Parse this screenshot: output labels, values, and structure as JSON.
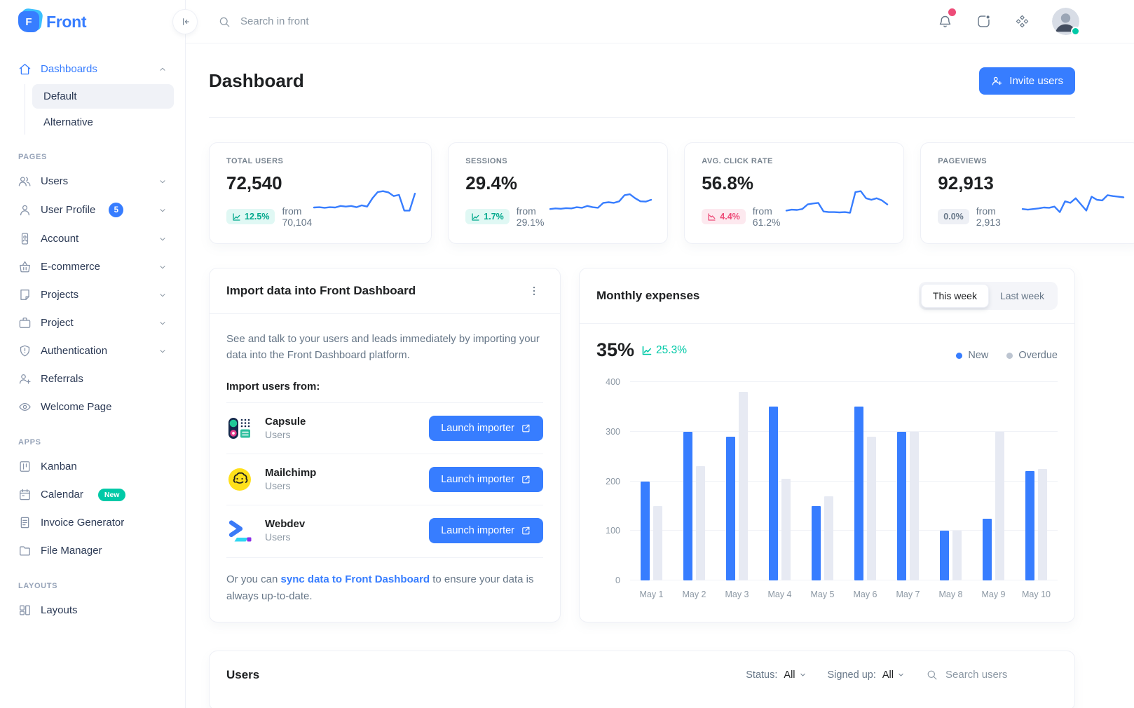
{
  "brand": {
    "name": "Front"
  },
  "header": {
    "search_placeholder": "Search in front",
    "icons": [
      "bell-icon",
      "activity-stream-icon",
      "apps-icon",
      "avatar"
    ]
  },
  "page": {
    "title": "Dashboard",
    "invite_button": "Invite users"
  },
  "colors": {
    "primary": "#377dff",
    "success": "#00c9a7",
    "danger": "#ed4c78",
    "bar_new": "#377dff",
    "bar_overdue": "#e7eaf3",
    "legend_overdue_dot": "#bdc5d1"
  },
  "sidebar": {
    "sections": [
      {
        "heading": null,
        "items": [
          {
            "label": "Dashboards",
            "icon": "home",
            "active": true,
            "expandable": true,
            "expanded": true,
            "children": [
              {
                "label": "Default",
                "active": true
              },
              {
                "label": "Alternative",
                "active": false
              }
            ]
          }
        ]
      },
      {
        "heading": "Pages",
        "items": [
          {
            "label": "Users",
            "icon": "users",
            "expandable": true
          },
          {
            "label": "User Profile",
            "icon": "user",
            "badge": "5",
            "expandable": true
          },
          {
            "label": "Account",
            "icon": "account",
            "expandable": true
          },
          {
            "label": "E-commerce",
            "icon": "basket",
            "expandable": true
          },
          {
            "label": "Projects",
            "icon": "note",
            "expandable": true
          },
          {
            "label": "Project",
            "icon": "briefcase",
            "expandable": true
          },
          {
            "label": "Authentication",
            "icon": "shield",
            "expandable": true
          },
          {
            "label": "Referrals",
            "icon": "user-plus"
          },
          {
            "label": "Welcome Page",
            "icon": "eye"
          }
        ]
      },
      {
        "heading": "Apps",
        "items": [
          {
            "label": "Kanban",
            "icon": "kanban"
          },
          {
            "label": "Calendar",
            "icon": "calendar",
            "badge_text": "New"
          },
          {
            "label": "Invoice Generator",
            "icon": "invoice"
          },
          {
            "label": "File Manager",
            "icon": "folder"
          }
        ]
      },
      {
        "heading": "Layouts",
        "items": [
          {
            "label": "Layouts",
            "icon": "layout"
          }
        ]
      }
    ]
  },
  "stats": [
    {
      "label": "Total users",
      "value": "72,540",
      "delta": "12.5%",
      "delta_dir": "up",
      "from": "from 70,104",
      "spark": [
        25,
        26,
        24,
        26,
        25,
        30,
        28,
        30,
        26,
        32,
        28,
        55,
        75,
        78,
        74,
        62,
        66,
        15,
        15,
        70
      ]
    },
    {
      "label": "Sessions",
      "value": "29.4%",
      "delta": "1.7%",
      "delta_dir": "up",
      "from": "from 29.1%",
      "spark": [
        20,
        22,
        21,
        23,
        22,
        26,
        24,
        30,
        26,
        24,
        40,
        42,
        40,
        45,
        65,
        68,
        55,
        45,
        44,
        50
      ]
    },
    {
      "label": "Avg. click rate",
      "value": "56.8%",
      "delta": "4.4%",
      "delta_dir": "down",
      "from": "from 61.2%",
      "spark": [
        15,
        18,
        17,
        20,
        35,
        38,
        40,
        12,
        10,
        10,
        9,
        10,
        8,
        75,
        78,
        55,
        50,
        55,
        48,
        35
      ]
    },
    {
      "label": "Pageviews",
      "value": "92,913",
      "delta": "0.0%",
      "delta_dir": "flat",
      "from": "from 2,913",
      "spark": [
        20,
        18,
        20,
        22,
        25,
        24,
        28,
        10,
        45,
        40,
        55,
        35,
        15,
        60,
        50,
        48,
        65,
        62,
        60,
        58
      ]
    }
  ],
  "import_card": {
    "title": "Import data into Front Dashboard",
    "description": "See and talk to your users and leads immediately by importing your data into the Front Dashboard platform.",
    "subtitle": "Import users from:",
    "items": [
      {
        "name": "Capsule",
        "type": "Users",
        "icon": "capsule",
        "button": "Launch importer"
      },
      {
        "name": "Mailchimp",
        "type": "Users",
        "icon": "mailchimp",
        "button": "Launch importer"
      },
      {
        "name": "Webdev",
        "type": "Users",
        "icon": "webdev",
        "button": "Launch importer"
      }
    ],
    "footer_prefix": "Or you can ",
    "footer_link": "sync data to Front Dashboard",
    "footer_suffix": " to ensure your data is always up-to-date."
  },
  "expenses_card": {
    "title": "Monthly expenses",
    "toggle": [
      "This week",
      "Last week"
    ],
    "active_toggle": "This week",
    "headline_value": "35%",
    "headline_delta": "25.3%",
    "legend": [
      {
        "label": "New",
        "color": "#377dff"
      },
      {
        "label": "Overdue",
        "color": "#bdc5d1"
      }
    ]
  },
  "chart_data": {
    "type": "bar",
    "title": "Monthly expenses",
    "categories": [
      "May 1",
      "May 2",
      "May 3",
      "May 4",
      "May 5",
      "May 6",
      "May 7",
      "May 8",
      "May 9",
      "May 10"
    ],
    "series": [
      {
        "name": "New",
        "color": "#377dff",
        "values": [
          200,
          300,
          290,
          350,
          150,
          350,
          300,
          100,
          125,
          220
        ]
      },
      {
        "name": "Overdue",
        "color": "#e7eaf3",
        "values": [
          150,
          230,
          380,
          205,
          170,
          290,
          300,
          100,
          300,
          225
        ]
      }
    ],
    "xlabel": "",
    "ylabel": "",
    "ylim": [
      0,
      400
    ],
    "yticks": [
      0,
      100,
      200,
      300,
      400
    ],
    "grid": true,
    "legend_position": "top-right"
  },
  "users_card": {
    "title": "Users",
    "status_label": "Status:",
    "status_value": "All",
    "signed_up_label": "Signed up:",
    "signed_up_value": "All",
    "search_placeholder": "Search users"
  }
}
